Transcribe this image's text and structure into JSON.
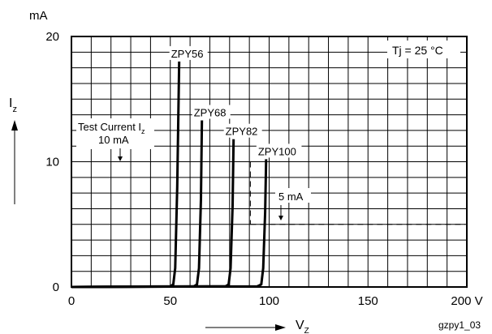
{
  "chart_data": {
    "type": "line",
    "xlim": [
      0,
      200
    ],
    "ylim": [
      0,
      20
    ],
    "x_ticks": [
      0,
      50,
      100,
      150,
      200
    ],
    "x_tick_labels": [
      "0",
      "50",
      "100",
      "150",
      "200 V"
    ],
    "y_ticks": [
      0,
      10,
      20
    ],
    "y_tick_labels": [
      "0",
      "10",
      "20"
    ],
    "y_unit": "mA",
    "ylabel": "I",
    "ylabel_sub": "z",
    "xlabel": "V",
    "xlabel_sub": "Z",
    "grid": true,
    "grid_x_step": 10,
    "grid_y_step": 1.25,
    "annotation_temp": "Tj = 25 °C",
    "test_current_label_line1": "Test Current I",
    "test_current_label_sub": "z",
    "test_current_label_line2": "10 mA",
    "test_current_value": 10,
    "test_current_5_label": "5 mA",
    "test_current_5_value": 5,
    "footer_code": "gzpy1_03",
    "series": [
      {
        "name": "ZPY56",
        "x": [
          0,
          50,
          51.5,
          52.5,
          53.5,
          54.5
        ],
        "y": [
          0,
          0.05,
          0.2,
          1.5,
          8.0,
          18.0
        ]
      },
      {
        "name": "ZPY68",
        "x": [
          0,
          62,
          63.5,
          64.5,
          65.5,
          66.0
        ],
        "y": [
          0,
          0.05,
          0.2,
          1.5,
          7.0,
          13.3
        ]
      },
      {
        "name": "ZPY82",
        "x": [
          0,
          78,
          79.5,
          80.5,
          81.5,
          82.0
        ],
        "y": [
          0,
          0.05,
          0.2,
          1.5,
          6.5,
          11.8
        ]
      },
      {
        "name": "ZPY100",
        "x": [
          0,
          94,
          96,
          97,
          98,
          98.5
        ],
        "y": [
          0,
          0.05,
          0.2,
          1.5,
          6.0,
          10.2
        ]
      }
    ]
  }
}
